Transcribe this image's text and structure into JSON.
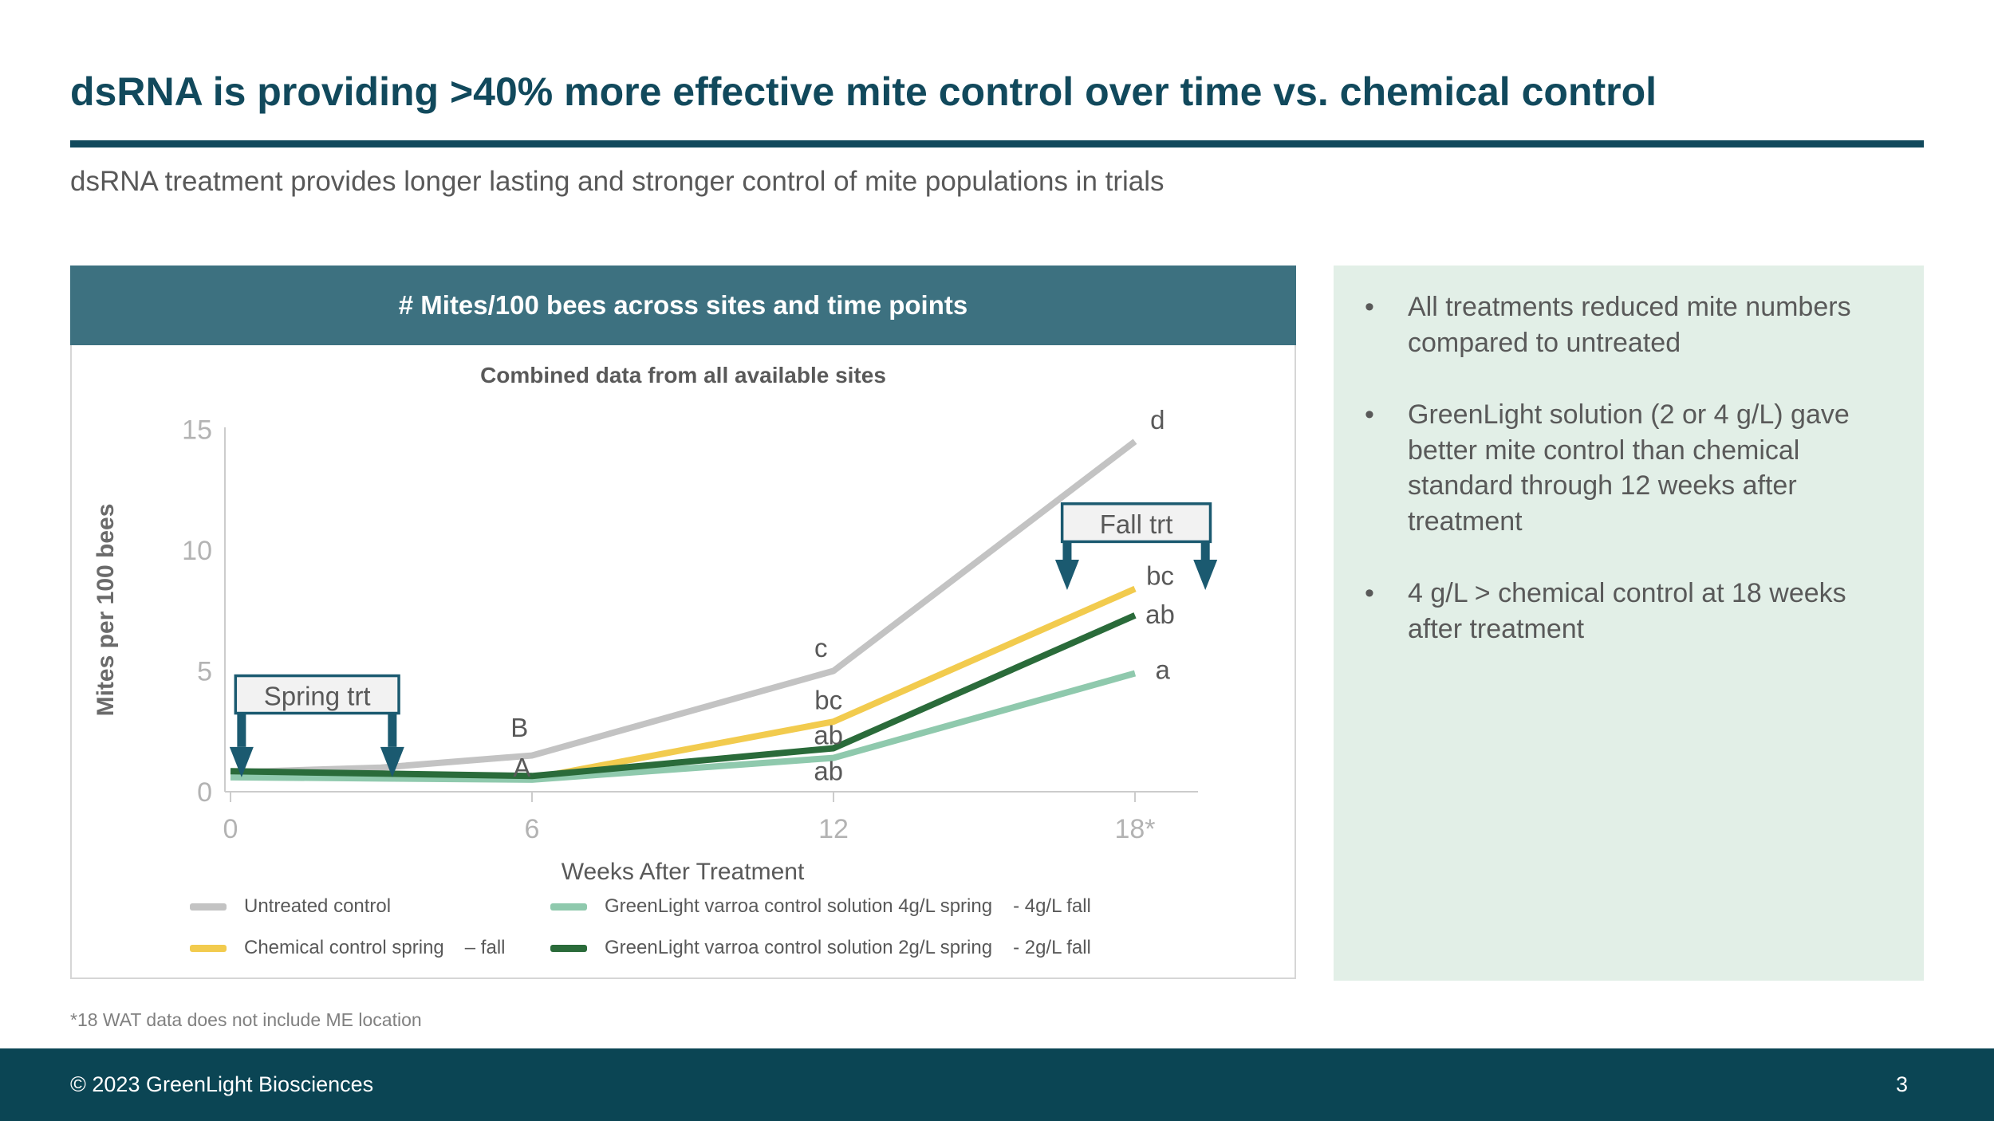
{
  "slide": {
    "title": "dsRNA is providing >40% more effective mite control over time vs. chemical control",
    "subtitle": "dsRNA treatment provides longer lasting and stronger control of mite populations in trials",
    "footnote": "*18 WAT data does not include ME location",
    "footer": {
      "copyright": "© 2023 GreenLight Biosciences",
      "page_number": "3"
    },
    "colors": {
      "accent_teal": "#11495c",
      "chart_header_teal": "#3d7180",
      "footer_teal": "#0b4554",
      "panel_mint": "#e2efe7",
      "text_gray": "#595959",
      "tick_gray": "#b3b3b3",
      "axis_gray": "#cccccc",
      "annotation_teal": "#1b5a70",
      "annotation_fill": "#f2f2f2"
    }
  },
  "chart_panel": {
    "header": "# Mites/100 bees across sites and time points"
  },
  "chart_data": {
    "type": "line",
    "title": "Combined data from all available sites",
    "xlabel": "Weeks After Treatment",
    "ylabel": "Mites per 100 bees",
    "x": [
      0,
      3,
      6,
      12,
      18
    ],
    "x_ticks": [
      {
        "value": 0,
        "label": "0"
      },
      {
        "value": 6,
        "label": "6"
      },
      {
        "value": 12,
        "label": "12"
      },
      {
        "value": 18,
        "label": "18*"
      }
    ],
    "y_ticks": [
      0,
      5,
      10,
      15
    ],
    "ylim": [
      0,
      15.5
    ],
    "grid": false,
    "legend_position": "bottom",
    "series": [
      {
        "key": "untreated",
        "name": "Untreated control",
        "color": "#c3c3c3",
        "values": [
          0.8,
          1.0,
          1.5,
          5.0,
          14.5
        ]
      },
      {
        "key": "chemical",
        "name": "Chemical control spring – fall",
        "color": "#f2cb4e",
        "values": [
          0.65,
          0.6,
          0.55,
          2.9,
          8.4
        ]
      },
      {
        "key": "greenlight-4g",
        "name": "GreenLight varroa control solution 4g/L spring - 4g/L fall",
        "color": "#8fc9ad",
        "values": [
          0.6,
          0.55,
          0.5,
          1.4,
          4.9
        ]
      },
      {
        "key": "greenlight-2g",
        "name": "GreenLight varroa control solution 2g/L spring - 2g/L fall",
        "color": "#2a6b3a",
        "values": [
          0.85,
          0.75,
          0.65,
          1.8,
          7.3
        ]
      }
    ],
    "stat_labels": [
      {
        "text": "B",
        "week": 5.75,
        "value": 2.65
      },
      {
        "text": "A",
        "week": 5.8,
        "value": 1.0
      },
      {
        "text": "c",
        "week": 11.75,
        "value": 5.95
      },
      {
        "text": "bc",
        "week": 11.9,
        "value": 3.8
      },
      {
        "text": "ab",
        "week": 11.9,
        "value": 2.35
      },
      {
        "text": "ab",
        "week": 11.9,
        "value": 0.85
      },
      {
        "text": "d",
        "week": 18.45,
        "value": 15.4
      },
      {
        "text": "bc",
        "week": 18.5,
        "value": 8.95
      },
      {
        "text": "ab",
        "week": 18.5,
        "value": 7.35
      },
      {
        "text": "a",
        "week": 18.55,
        "value": 5.05
      }
    ],
    "annotations": [
      {
        "label": "Spring trt",
        "box_week_range": [
          0.1,
          3.35
        ],
        "box_value_range": [
          4.8,
          3.25
        ],
        "arrow_weeks": [
          0.22,
          3.22
        ],
        "arrow_tip_value": 0.6
      },
      {
        "label": "Fall trt",
        "box_week_range": [
          16.55,
          19.5
        ],
        "box_value_range": [
          11.92,
          10.35
        ],
        "arrow_weeks": [
          16.65,
          19.4
        ],
        "arrow_tip_value": 8.35
      }
    ]
  },
  "legend": {
    "items": [
      {
        "key": "untreated",
        "color": "#c3c3c3",
        "label": "Untreated control",
        "fall": ""
      },
      {
        "key": "greenlight-4g",
        "color": "#8fc9ad",
        "label": "GreenLight varroa control solution 4g/L spring",
        "fall": "- 4g/L fall"
      },
      {
        "key": "chemical",
        "color": "#f2cb4e",
        "label": "Chemical control spring",
        "fall": "– fall"
      },
      {
        "key": "greenlight-2g",
        "color": "#2a6b3a",
        "label": "GreenLight varroa control solution 2g/L spring",
        "fall": "- 2g/L fall"
      }
    ]
  },
  "insights": {
    "bullets": [
      "All treatments reduced mite numbers compared to untreated",
      "GreenLight solution (2 or 4 g/L) gave better mite control than chemical standard through 12 weeks after treatment",
      "4 g/L > chemical control at 18 weeks after treatment"
    ]
  }
}
